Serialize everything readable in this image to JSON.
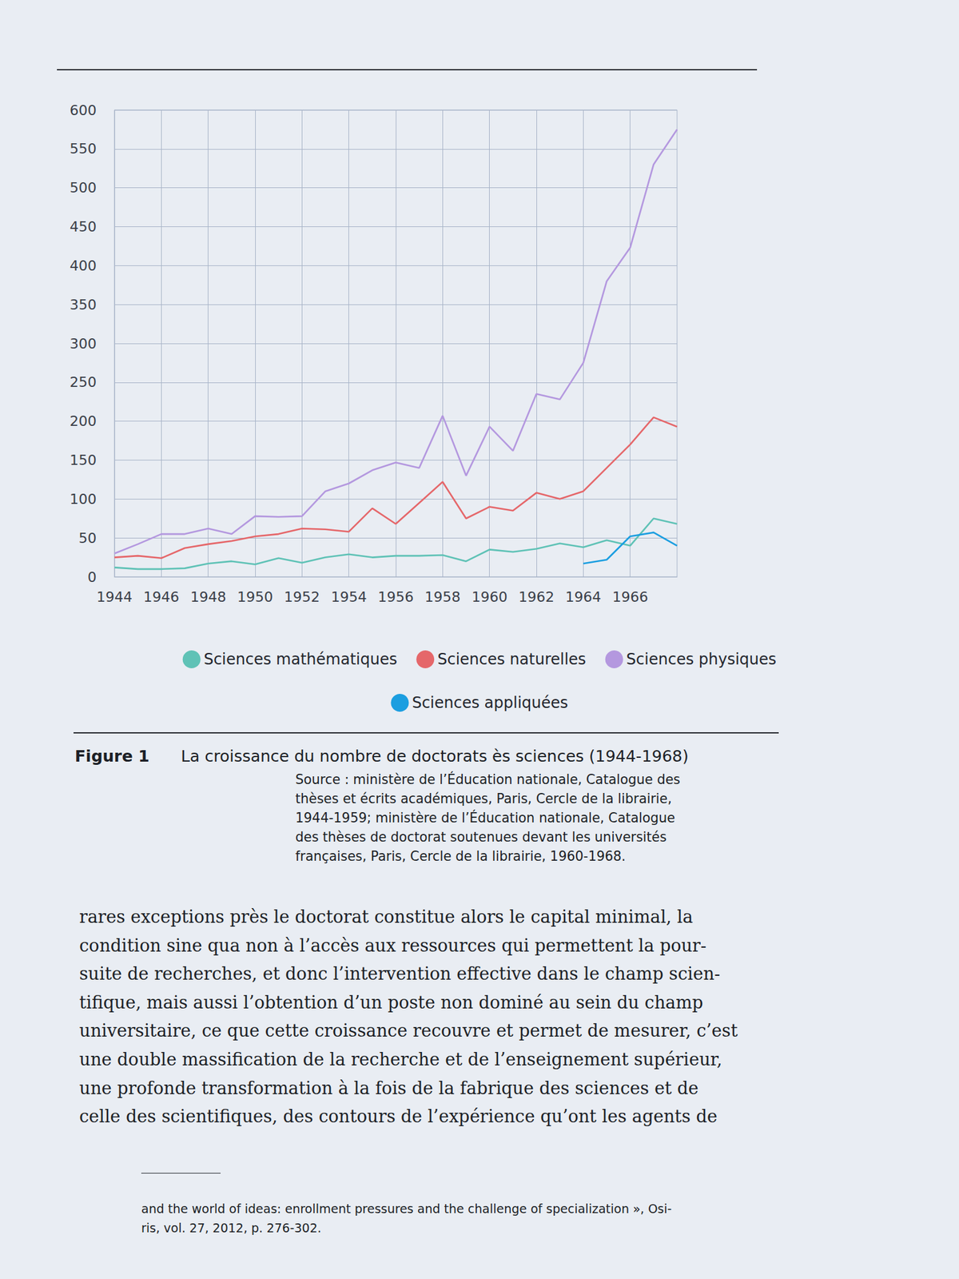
{
  "chart_data": {
    "type": "line",
    "title": "La croissance du nombre de doctorats ès sciences (1944-1968)",
    "x": [
      1944,
      1945,
      1946,
      1947,
      1948,
      1949,
      1950,
      1951,
      1952,
      1953,
      1954,
      1955,
      1956,
      1957,
      1958,
      1959,
      1960,
      1961,
      1962,
      1963,
      1964,
      1965,
      1966,
      1967,
      1968
    ],
    "series": [
      {
        "name": "Sciences mathématiques",
        "color": "#5fc2b6",
        "values": [
          12,
          10,
          10,
          11,
          17,
          20,
          16,
          24,
          18,
          25,
          29,
          25,
          27,
          27,
          28,
          20,
          35,
          32,
          36,
          43,
          38,
          47,
          40,
          75,
          68
        ]
      },
      {
        "name": "Sciences naturelles",
        "color": "#e5676a",
        "values": [
          25,
          27,
          24,
          37,
          42,
          46,
          52,
          55,
          62,
          61,
          58,
          88,
          68,
          95,
          122,
          75,
          90,
          85,
          108,
          100,
          110,
          140,
          170,
          205,
          193
        ]
      },
      {
        "name": "Sciences physiques",
        "color": "#b498df",
        "values": [
          30,
          42,
          55,
          55,
          62,
          55,
          78,
          77,
          78,
          110,
          120,
          137,
          147,
          140,
          207,
          130,
          193,
          162,
          235,
          228,
          275,
          380,
          423,
          530,
          575
        ]
      },
      {
        "name": "Sciences appliquées",
        "color": "#1b9ee0",
        "values": [
          null,
          null,
          null,
          null,
          null,
          null,
          null,
          null,
          null,
          null,
          null,
          null,
          null,
          null,
          null,
          null,
          null,
          null,
          null,
          null,
          17,
          22,
          52,
          57,
          40
        ]
      }
    ],
    "xlim": [
      1944,
      1968
    ],
    "xticks": [
      1944,
      1946,
      1948,
      1950,
      1952,
      1954,
      1956,
      1958,
      1960,
      1962,
      1964,
      1966
    ],
    "ylim": [
      0,
      600
    ],
    "yticks": [
      0,
      50,
      100,
      150,
      200,
      250,
      300,
      350,
      400,
      450,
      500,
      550,
      600
    ],
    "grid": true,
    "legend": "bottom"
  },
  "caption": {
    "label": "Figure 1",
    "source": [
      "Source : ministère de l’Éducation nationale, Catalogue des",
      "thèses et écrits académiques, Paris, Cercle de la librairie,",
      "1944-1959; ministère de l’Éducation nationale, Catalogue",
      "des thèses de doctorat soutenues devant les universités",
      "françaises, Paris, Cercle de la librairie, 1960-1968."
    ]
  },
  "body_text": [
    "rares exceptions près le doctorat constitue alors le capital minimal, la",
    "condition sine qua non à l’accès aux ressources qui permettent la pour-",
    "suite de recherches, et donc l’intervention effective dans le champ scien-",
    "tifique, mais aussi l’obtention d’un poste non dominé au sein du champ",
    "universitaire, ce que cette croissance recouvre et permet de mesurer, c’est",
    "une double massification de la recherche et de l’enseignement supérieur,",
    "une profonde transformation à la fois de la fabrique des sciences et de",
    "celle des scientifiques, des contours de l’expérience qu’ont les agents de"
  ],
  "footnote": [
    "and the world of ideas: enrollment pressures and the challenge of specialization », Osi-",
    "ris, vol. 27, 2012, p. 276-302."
  ]
}
